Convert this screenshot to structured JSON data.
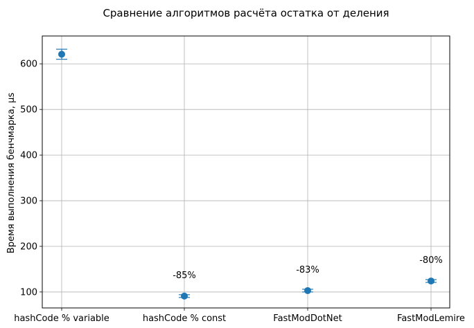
{
  "chart_data": {
    "type": "scatter",
    "title": "Сравнение алгоритмов расчёта остатка от деления",
    "xlabel": "",
    "ylabel": "Время выполнения бенчмарка, µs",
    "categories": [
      "hashCode % variable",
      "hashCode % const",
      "FastModDotNet",
      "FastModLemire"
    ],
    "series": [
      {
        "values": [
          621,
          91,
          103,
          124
        ],
        "error": [
          11,
          3,
          3,
          3
        ],
        "color": "#1f77b4"
      }
    ],
    "annotations": [
      "",
      "-85%",
      "-83%",
      "-80%"
    ],
    "ylim": [
      65,
      661
    ],
    "yticks": [
      100,
      200,
      300,
      400,
      500,
      600
    ],
    "grid": true
  }
}
